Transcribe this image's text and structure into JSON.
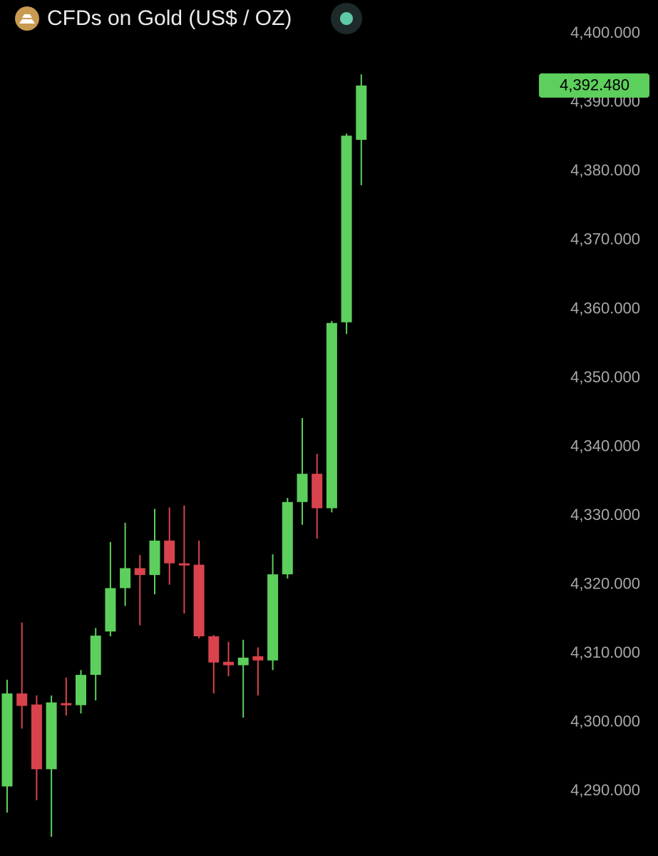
{
  "chart_data": {
    "type": "candlestick",
    "title": "CFDs on Gold (US$ / OZ)",
    "open": [
      4290.7,
      4304.2,
      4302.6,
      4293.2,
      4302.8,
      4302.5,
      4306.9,
      4313.2,
      4319.5,
      4322.4,
      4321.4,
      4326.4,
      4323.1,
      4322.9,
      4312.5,
      4308.8,
      4308.3,
      4309.6,
      4309.0,
      4321.5,
      4332.0,
      4336.1,
      4331.1,
      4358.1,
      4384.6
    ],
    "high": [
      4306.2,
      4314.5,
      4303.9,
      4303.9,
      4306.5,
      4307.6,
      4313.7,
      4326.2,
      4329.0,
      4324.3,
      4331.0,
      4331.2,
      4331.5,
      4326.4,
      4312.7,
      4311.7,
      4312.0,
      4310.9,
      4324.4,
      4332.6,
      4344.2,
      4339.0,
      4358.3,
      4385.5,
      4394.1
    ],
    "low": [
      4286.9,
      4299.1,
      4288.7,
      4283.4,
      4301.0,
      4301.3,
      4303.2,
      4312.5,
      4316.9,
      4314.1,
      4318.6,
      4320.0,
      4315.8,
      4312.2,
      4304.2,
      4306.7,
      4300.7,
      4303.9,
      4307.6,
      4320.9,
      4328.7,
      4326.7,
      4330.5,
      4356.4,
      4378.0
    ],
    "close": [
      4304.2,
      4302.4,
      4293.2,
      4302.9,
      4302.5,
      4306.9,
      4312.6,
      4319.5,
      4322.4,
      4321.4,
      4326.4,
      4323.1,
      4322.9,
      4312.5,
      4308.7,
      4308.3,
      4309.4,
      4309.0,
      4321.5,
      4332.0,
      4336.1,
      4331.1,
      4358.0,
      4385.2,
      4392.48
    ],
    "up_color": "#5dcf5c",
    "down_color": "#d9434d",
    "ylim": [
      4280.6,
      4404.9
    ],
    "yticks": [
      {
        "value": 4290,
        "label": "4,290.000"
      },
      {
        "value": 4300,
        "label": "4,300.000"
      },
      {
        "value": 4310,
        "label": "4,310.000"
      },
      {
        "value": 4320,
        "label": "4,320.000"
      },
      {
        "value": 4330,
        "label": "4,330.000"
      },
      {
        "value": 4340,
        "label": "4,340.000"
      },
      {
        "value": 4350,
        "label": "4,350.000"
      },
      {
        "value": 4360,
        "label": "4,360.000"
      },
      {
        "value": 4370,
        "label": "4,370.000"
      },
      {
        "value": 4380,
        "label": "4,380.000"
      },
      {
        "value": 4390,
        "label": "4,390.000"
      },
      {
        "value": 4400,
        "label": "4,400.000"
      }
    ],
    "last_price": {
      "value": 4392.48,
      "label": "4,392.480"
    }
  }
}
